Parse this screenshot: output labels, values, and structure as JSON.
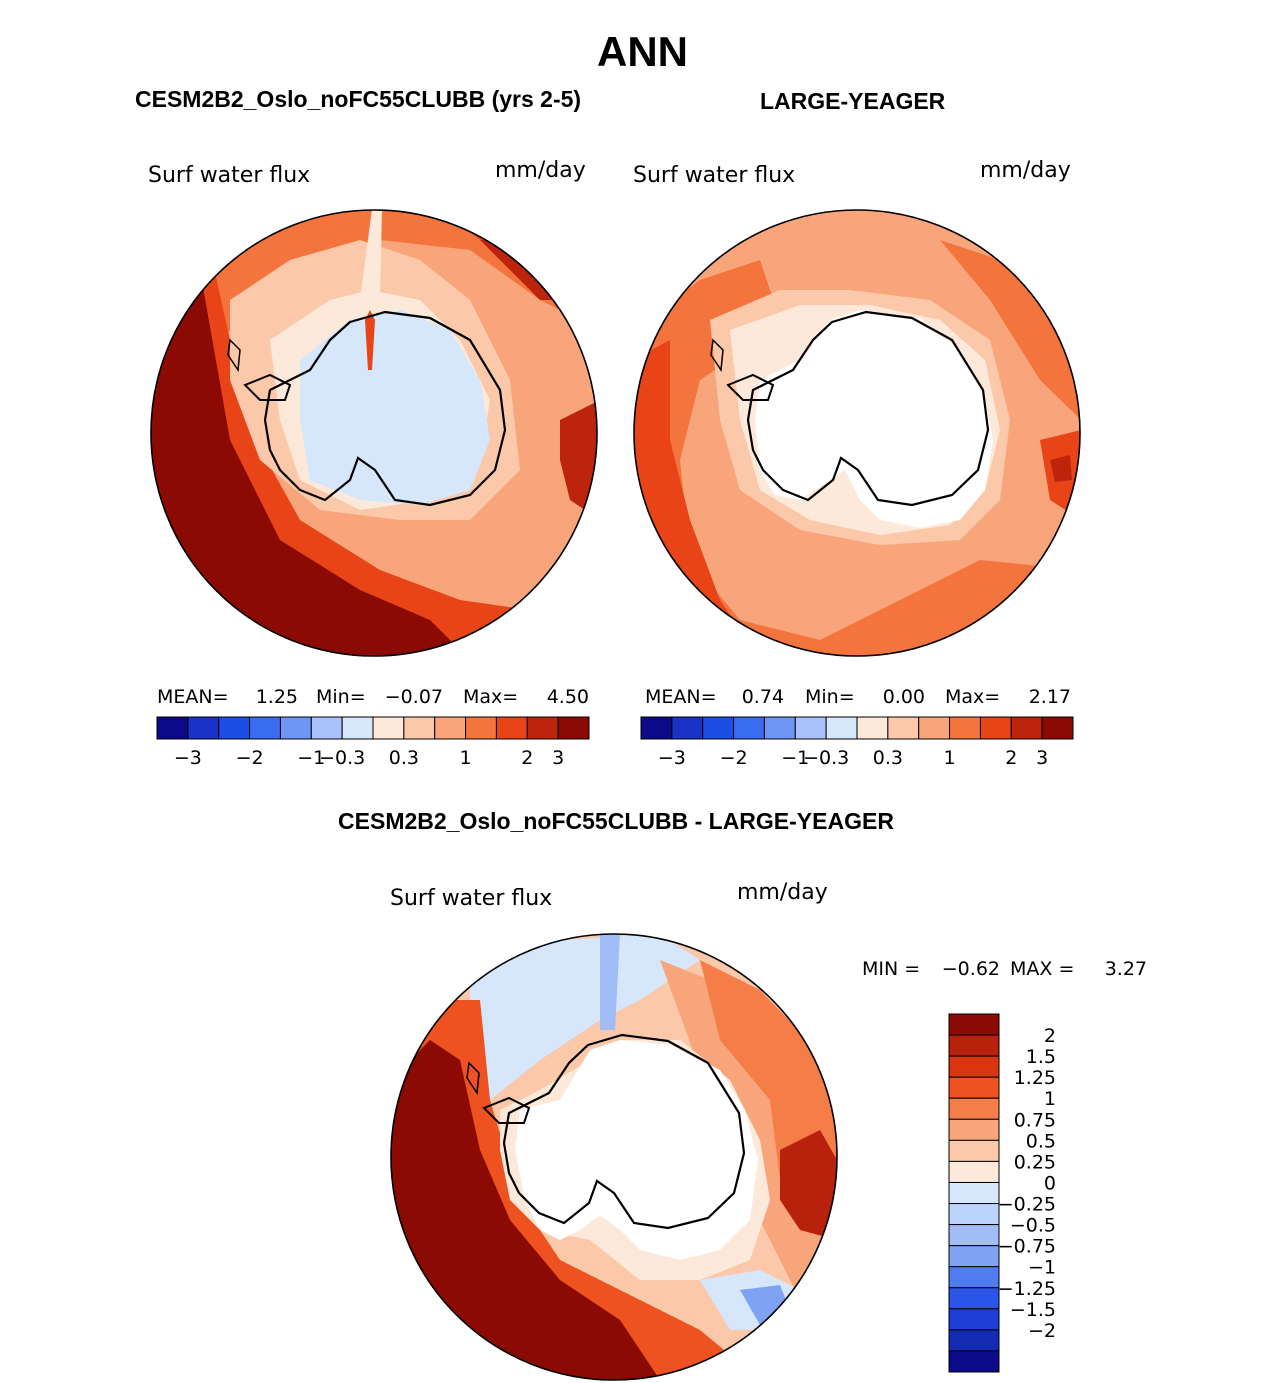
{
  "page_title": "ANN",
  "panels": [
    {
      "title": "CESM2B2_Oslo_noFC55CLUBB (yrs 2-5)",
      "variable": "Surf water flux",
      "units": "mm/day",
      "stats": {
        "mean_label": "MEAN=",
        "mean": "1.25",
        "min_label": "Min=",
        "min": "−0.07",
        "max_label": "Max=",
        "max": "4.50"
      },
      "colorbar": {
        "colors": [
          "#0b0b8a",
          "#1b32c6",
          "#1c4ee6",
          "#3a6cf1",
          "#6e96f6",
          "#a9c2fb",
          "#d6e6fb",
          "#fde9da",
          "#fbc9a9",
          "#f9a57c",
          "#f4743d",
          "#e84417",
          "#bd240d",
          "#8b0a04"
        ],
        "tick_labels": [
          "−3",
          "−2",
          "−1",
          "−0.3",
          "0.3",
          "1",
          "2",
          "3"
        ]
      }
    },
    {
      "title": "LARGE-YEAGER",
      "variable": "Surf water flux",
      "units": "mm/day",
      "stats": {
        "mean_label": "MEAN=",
        "mean": "0.74",
        "min_label": "Min=",
        "min": "0.00",
        "max_label": "Max=",
        "max": "2.17"
      },
      "colorbar": {
        "colors": [
          "#0b0b8a",
          "#1b32c6",
          "#1c4ee6",
          "#3a6cf1",
          "#6e96f6",
          "#a9c2fb",
          "#d6e6fb",
          "#fde9da",
          "#fbc9a9",
          "#f9a57c",
          "#f4743d",
          "#e84417",
          "#bd240d",
          "#8b0a04"
        ],
        "tick_labels": [
          "−3",
          "−2",
          "−1",
          "−0.3",
          "0.3",
          "1",
          "2",
          "3"
        ]
      }
    }
  ],
  "difference": {
    "title": "CESM2B2_Oslo_noFC55CLUBB - LARGE-YEAGER",
    "variable": "Surf water flux",
    "units": "mm/day",
    "min_label": "MIN =",
    "min": "−0.62",
    "max_label": "MAX =",
    "max": "3.27",
    "colorbar": {
      "colors_top_to_bottom": [
        "#8b0a04",
        "#b8220d",
        "#d9360f",
        "#ee5220",
        "#f47d48",
        "#f9a57c",
        "#fbc9a9",
        "#fde9da",
        "#d6e6fb",
        "#bcd3fb",
        "#a0bdf8",
        "#7fa2f3",
        "#4f7cee",
        "#2b55e8",
        "#1f3ed8",
        "#132bb2",
        "#0b0b8a"
      ],
      "labels": [
        "2",
        "1.5",
        "1.25",
        "1",
        "0.75",
        "0.5",
        "0.25",
        "0",
        "−0.25",
        "−0.5",
        "−0.75",
        "−1",
        "−1.25",
        "−1.5",
        "−2"
      ]
    }
  }
}
